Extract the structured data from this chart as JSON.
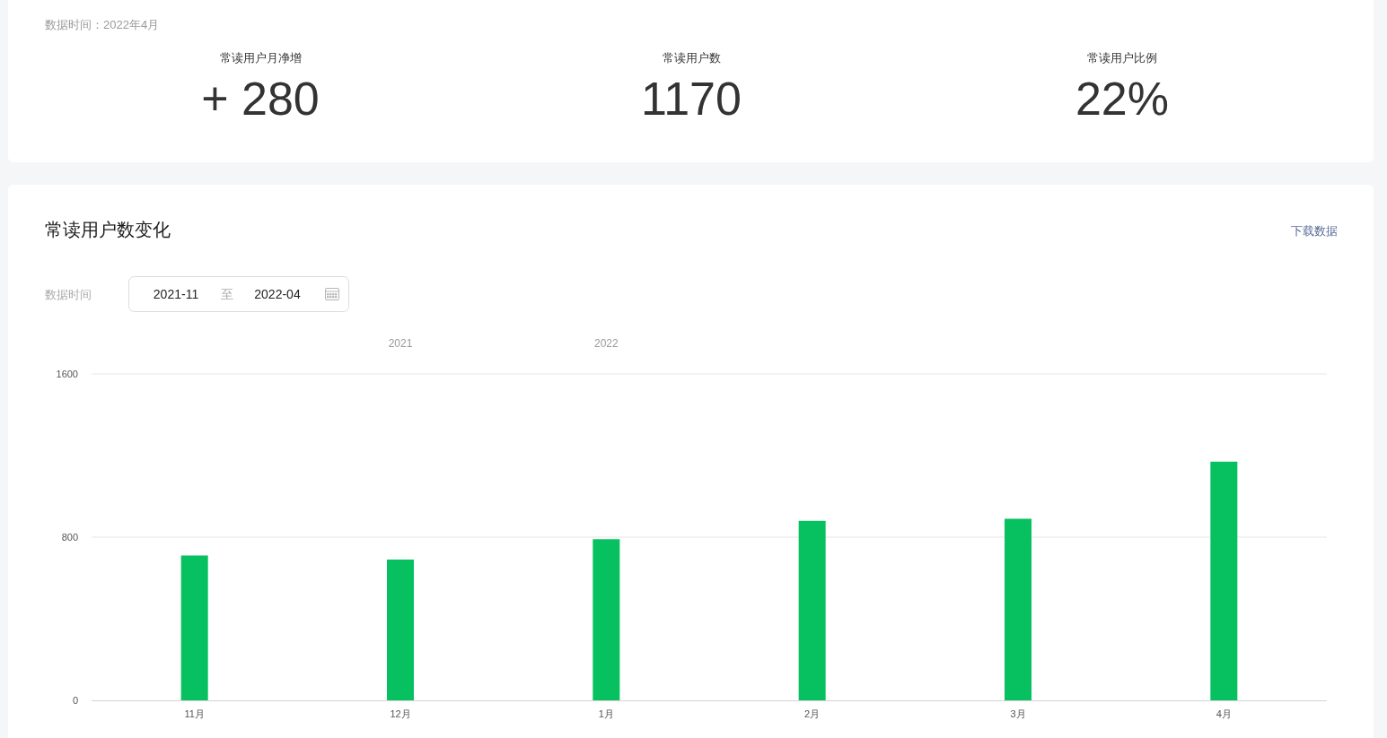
{
  "chart_data": [
    {
      "type": "other",
      "subtitle": "数据时间：2022年4月",
      "annotations": [
        "常读用户月净增",
        "+ 280",
        "常读用户数",
        "1170",
        "常读用户比例",
        "22%"
      ]
    },
    {
      "type": "bar",
      "title": "常读用户数变化",
      "annotations": [
        "下载数据",
        "数据时间",
        "2021-11",
        "至",
        "2022-04",
        "2021",
        "2022"
      ],
      "categories": [
        "11月",
        "12月",
        "1月",
        "2月",
        "3月",
        "4月"
      ],
      "values": [
        710,
        690,
        790,
        880,
        890,
        1170
      ],
      "color": "#07c160",
      "ylim": [
        0,
        1600
      ],
      "yticks": [
        0,
        800,
        1600
      ],
      "grid": "y"
    }
  ]
}
